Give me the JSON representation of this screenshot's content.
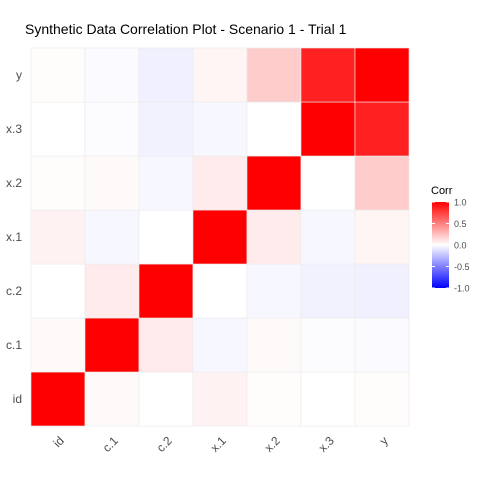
{
  "chart_data": {
    "type": "heatmap",
    "title": "Synthetic Data Correlation Plot - Scenario 1 - Trial 1",
    "xlabel": "",
    "ylabel": "",
    "x_categories": [
      "id",
      "c.1",
      "c.2",
      "x.1",
      "x.2",
      "x.3",
      "y"
    ],
    "y_categories": [
      "id",
      "c.1",
      "c.2",
      "x.1",
      "x.2",
      "x.3",
      "y"
    ],
    "values": [
      [
        1.0,
        0.02,
        0.0,
        0.05,
        0.01,
        0.0,
        0.01
      ],
      [
        0.02,
        1.0,
        0.08,
        -0.03,
        0.02,
        -0.01,
        -0.02
      ],
      [
        0.0,
        0.08,
        1.0,
        0.0,
        -0.03,
        -0.05,
        -0.06
      ],
      [
        0.05,
        -0.03,
        0.0,
        1.0,
        0.08,
        -0.03,
        0.04
      ],
      [
        0.01,
        0.02,
        -0.03,
        0.08,
        1.0,
        0.0,
        0.2
      ],
      [
        0.0,
        -0.01,
        -0.05,
        -0.03,
        0.0,
        1.0,
        0.87
      ],
      [
        0.01,
        -0.02,
        -0.06,
        0.04,
        0.2,
        0.87,
        1.0
      ]
    ],
    "legend": {
      "title": "Corr",
      "ticks": [
        "1.0",
        "0.5",
        "0.0",
        "-0.5",
        "-1.0"
      ],
      "tick_values": [
        1.0,
        0.5,
        0.0,
        -0.5,
        -1.0
      ],
      "range": [
        -1.0,
        1.0
      ],
      "placement": "right"
    },
    "colors": {
      "high": "#FF0000",
      "mid": "#FFFFFF",
      "low": "#0000FF",
      "grid": "#EBEBEB",
      "text": "#4D4D4D",
      "title": "#000000"
    }
  }
}
